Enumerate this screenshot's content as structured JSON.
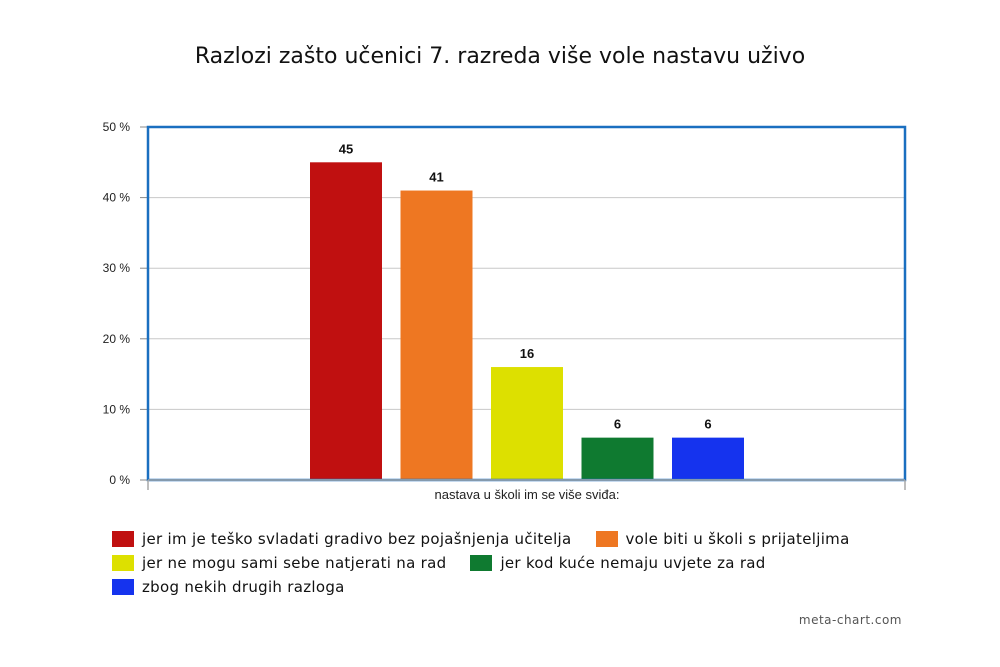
{
  "chart_data": {
    "type": "bar",
    "title": "Razlozi zašto učenici 7. razreda više vole nastavu uživo",
    "xlabel": "nastava u školi im se više sviđa:",
    "ylabel": "",
    "ylim": [
      0,
      50
    ],
    "yticks": [
      "0 %",
      "10 %",
      "20 %",
      "30 %",
      "40 %",
      "50 %"
    ],
    "grid": true,
    "legend_position": "bottom",
    "categories": [
      "jer im je teško svladati gradivo bez pojašnjenja učitelja",
      "vole biti u školi s prijateljima",
      "jer ne mogu sami sebe natjerati na rad",
      "jer kod kuće nemaju uvjete za rad",
      "zbog nekih drugih razloga"
    ],
    "values": [
      45,
      41,
      16,
      6,
      6
    ],
    "data_labels": [
      "45",
      "41",
      "16",
      "6",
      "6"
    ],
    "colors": [
      "#c01010",
      "#ee7722",
      "#dde000",
      "#0f7a30",
      "#1533ee"
    ]
  },
  "axis_color": "#1a6fc0",
  "footer": {
    "credit": "meta-chart.com"
  }
}
